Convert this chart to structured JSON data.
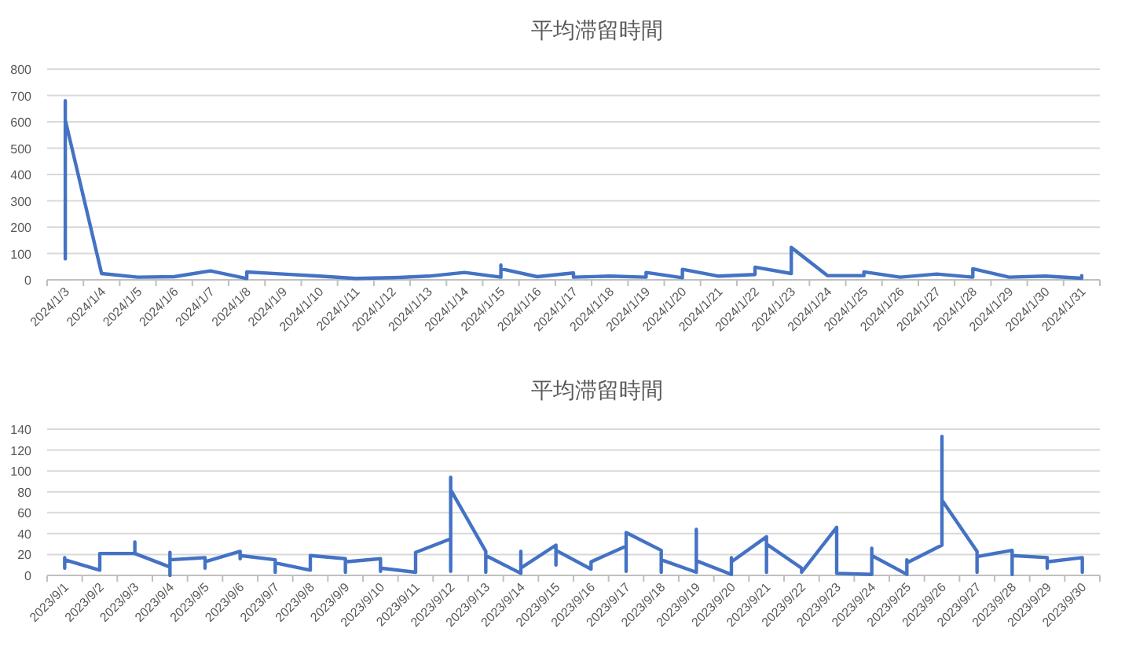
{
  "chart_data": [
    {
      "type": "line",
      "title": "平均滞留時間",
      "xlim": [
        "2024-01-02T12:00",
        "2024-01-31T12:00"
      ],
      "xticks": [
        {
          "value": "2024-01-03",
          "label": "2024/1/3"
        },
        {
          "value": "2024-01-04",
          "label": "2024/1/4"
        },
        {
          "value": "2024-01-05",
          "label": "2024/1/5"
        },
        {
          "value": "2024-01-06",
          "label": "2024/1/6"
        },
        {
          "value": "2024-01-07",
          "label": "2024/1/7"
        },
        {
          "value": "2024-01-08",
          "label": "2024/1/8"
        },
        {
          "value": "2024-01-09",
          "label": "2024/1/9"
        },
        {
          "value": "2024-01-10",
          "label": "2024/1/10"
        },
        {
          "value": "2024-01-11",
          "label": "2024/1/11"
        },
        {
          "value": "2024-01-12",
          "label": "2024/1/12"
        },
        {
          "value": "2024-01-13",
          "label": "2024/1/13"
        },
        {
          "value": "2024-01-14",
          "label": "2024/1/14"
        },
        {
          "value": "2024-01-15",
          "label": "2024/1/15"
        },
        {
          "value": "2024-01-16",
          "label": "2024/1/16"
        },
        {
          "value": "2024-01-17",
          "label": "2024/1/17"
        },
        {
          "value": "2024-01-18",
          "label": "2024/1/18"
        },
        {
          "value": "2024-01-19",
          "label": "2024/1/19"
        },
        {
          "value": "2024-01-20",
          "label": "2024/1/20"
        },
        {
          "value": "2024-01-21",
          "label": "2024/1/21"
        },
        {
          "value": "2024-01-22",
          "label": "2024/1/22"
        },
        {
          "value": "2024-01-23",
          "label": "2024/1/23"
        },
        {
          "value": "2024-01-24",
          "label": "2024/1/24"
        },
        {
          "value": "2024-01-25",
          "label": "2024/1/25"
        },
        {
          "value": "2024-01-26",
          "label": "2024/1/26"
        },
        {
          "value": "2024-01-27",
          "label": "2024/1/27"
        },
        {
          "value": "2024-01-28",
          "label": "2024/1/28"
        },
        {
          "value": "2024-01-29",
          "label": "2024/1/29"
        },
        {
          "value": "2024-01-30",
          "label": "2024/1/30"
        },
        {
          "value": "2024-01-31",
          "label": "2024/1/31"
        }
      ],
      "ylim": [
        0,
        800
      ],
      "yticks": [
        0,
        100,
        200,
        300,
        400,
        500,
        600,
        700,
        800
      ],
      "grid": "y",
      "marker": "none",
      "series": [
        {
          "color": "#4472c4",
          "x": [
            "2024-01-03",
            "2024-01-03",
            "2024-01-03",
            "2024-01-04",
            "2024-01-05",
            "2024-01-06",
            "2024-01-07",
            "2024-01-08",
            "2024-01-08",
            "2024-01-09",
            "2024-01-10",
            "2024-01-11",
            "2024-01-12",
            "2024-01-13",
            "2024-01-14",
            "2024-01-15",
            "2024-01-15",
            "2024-01-15",
            "2024-01-16",
            "2024-01-17",
            "2024-01-17",
            "2024-01-18",
            "2024-01-19",
            "2024-01-19",
            "2024-01-20",
            "2024-01-20",
            "2024-01-21",
            "2024-01-22",
            "2024-01-22",
            "2024-01-23",
            "2024-01-23",
            "2024-01-24",
            "2024-01-25",
            "2024-01-25",
            "2024-01-26",
            "2024-01-27",
            "2024-01-28",
            "2024-01-28",
            "2024-01-28",
            "2024-01-29",
            "2024-01-30",
            "2024-01-31",
            "2024-01-31"
          ],
          "values": [
            80,
            680,
            607,
            24,
            10,
            12,
            34,
            5,
            30,
            22,
            14,
            5,
            8,
            14,
            28,
            10,
            56,
            42,
            12,
            26,
            10,
            14,
            10,
            28,
            8,
            40,
            14,
            20,
            48,
            24,
            123,
            16,
            16,
            30,
            10,
            22,
            10,
            28,
            42,
            10,
            14,
            6,
            16
          ]
        }
      ]
    },
    {
      "type": "line",
      "title": "平均滞留時間",
      "xlim": [
        "2023-08-31T12:00",
        "2023-09-30T12:00"
      ],
      "xticks": [
        {
          "value": "2023-09-01",
          "label": "2023/9/1"
        },
        {
          "value": "2023-09-02",
          "label": "2023/9/2"
        },
        {
          "value": "2023-09-03",
          "label": "2023/9/3"
        },
        {
          "value": "2023-09-04",
          "label": "2023/9/4"
        },
        {
          "value": "2023-09-05",
          "label": "2023/9/5"
        },
        {
          "value": "2023-09-06",
          "label": "2023/9/6"
        },
        {
          "value": "2023-09-07",
          "label": "2023/9/7"
        },
        {
          "value": "2023-09-08",
          "label": "2023/9/8"
        },
        {
          "value": "2023-09-09",
          "label": "2023/9/9"
        },
        {
          "value": "2023-09-10",
          "label": "2023/9/10"
        },
        {
          "value": "2023-09-11",
          "label": "2023/9/11"
        },
        {
          "value": "2023-09-12",
          "label": "2023/9/12"
        },
        {
          "value": "2023-09-13",
          "label": "2023/9/13"
        },
        {
          "value": "2023-09-14",
          "label": "2023/9/14"
        },
        {
          "value": "2023-09-15",
          "label": "2023/9/15"
        },
        {
          "value": "2023-09-16",
          "label": "2023/9/16"
        },
        {
          "value": "2023-09-17",
          "label": "2023/9/17"
        },
        {
          "value": "2023-09-18",
          "label": "2023/9/18"
        },
        {
          "value": "2023-09-19",
          "label": "2023/9/19"
        },
        {
          "value": "2023-09-20",
          "label": "2023/9/20"
        },
        {
          "value": "2023-09-21",
          "label": "2023/9/21"
        },
        {
          "value": "2023-09-22",
          "label": "2023/9/22"
        },
        {
          "value": "2023-09-23",
          "label": "2023/9/23"
        },
        {
          "value": "2023-09-24",
          "label": "2023/9/24"
        },
        {
          "value": "2023-09-25",
          "label": "2023/9/25"
        },
        {
          "value": "2023-09-26",
          "label": "2023/9/26"
        },
        {
          "value": "2023-09-27",
          "label": "2023/9/27"
        },
        {
          "value": "2023-09-28",
          "label": "2023/9/28"
        },
        {
          "value": "2023-09-29",
          "label": "2023/9/29"
        },
        {
          "value": "2023-09-30",
          "label": "2023/9/30"
        }
      ],
      "ylim": [
        0,
        140
      ],
      "yticks": [
        0,
        20,
        40,
        60,
        80,
        100,
        120,
        140
      ],
      "grid": "y",
      "marker": "none",
      "series": [
        {
          "color": "#4472c4",
          "x": [
            "2023-09-01",
            "2023-09-01",
            "2023-09-01",
            "2023-09-02",
            "2023-09-02",
            "2023-09-03",
            "2023-09-03",
            "2023-09-03",
            "2023-09-04",
            "2023-09-04",
            "2023-09-04",
            "2023-09-04",
            "2023-09-05",
            "2023-09-05",
            "2023-09-05",
            "2023-09-06",
            "2023-09-06",
            "2023-09-06",
            "2023-09-07",
            "2023-09-07",
            "2023-09-07",
            "2023-09-08",
            "2023-09-08",
            "2023-09-09",
            "2023-09-09",
            "2023-09-09",
            "2023-09-10",
            "2023-09-10",
            "2023-09-10",
            "2023-09-11",
            "2023-09-11",
            "2023-09-12",
            "2023-09-12",
            "2023-09-12",
            "2023-09-12",
            "2023-09-13",
            "2023-09-13",
            "2023-09-13",
            "2023-09-14",
            "2023-09-14",
            "2023-09-14",
            "2023-09-15",
            "2023-09-15",
            "2023-09-15",
            "2023-09-16",
            "2023-09-16",
            "2023-09-17",
            "2023-09-17",
            "2023-09-17",
            "2023-09-18",
            "2023-09-18",
            "2023-09-18",
            "2023-09-19",
            "2023-09-19",
            "2023-09-19",
            "2023-09-20",
            "2023-09-20",
            "2023-09-20",
            "2023-09-21",
            "2023-09-21",
            "2023-09-21",
            "2023-09-22",
            "2023-09-22",
            "2023-09-23",
            "2023-09-23",
            "2023-09-24",
            "2023-09-24",
            "2023-09-24",
            "2023-09-25",
            "2023-09-25",
            "2023-09-25",
            "2023-09-26",
            "2023-09-26",
            "2023-09-26",
            "2023-09-27",
            "2023-09-27",
            "2023-09-27",
            "2023-09-28",
            "2023-09-28",
            "2023-09-28",
            "2023-09-29",
            "2023-09-29",
            "2023-09-29",
            "2023-09-30",
            "2023-09-30",
            "2023-09-30"
          ],
          "values": [
            7,
            17,
            15,
            5,
            21,
            21,
            32,
            21,
            8,
            0,
            22,
            15,
            17,
            7,
            13,
            23,
            16,
            19,
            15,
            3,
            12,
            5,
            19,
            16,
            3,
            13,
            16,
            4,
            7,
            3,
            22,
            35,
            4,
            94,
            82,
            23,
            3,
            19,
            2,
            23,
            7,
            29,
            10,
            24,
            6,
            13,
            28,
            4,
            41,
            24,
            3,
            15,
            3,
            44,
            14,
            1,
            17,
            13,
            37,
            3,
            30,
            7,
            3,
            46,
            2,
            1,
            26,
            19,
            1,
            15,
            12,
            29,
            133,
            72,
            23,
            3,
            18,
            24,
            1,
            19,
            17,
            7,
            13,
            17,
            3,
            15
          ]
        }
      ]
    }
  ]
}
